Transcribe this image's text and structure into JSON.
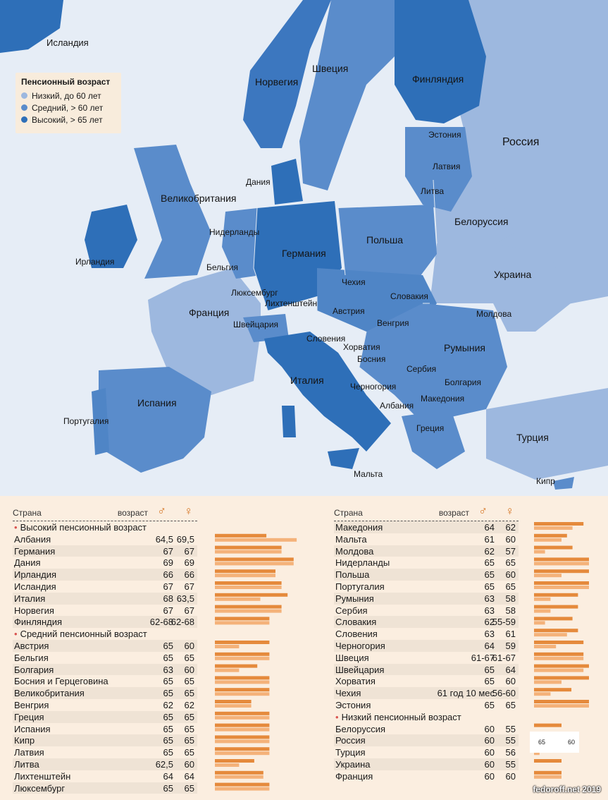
{
  "legend": {
    "title": "Пенсионный возраст",
    "items": [
      {
        "label": "Низкий, до 60 лет",
        "color": "#9db8df"
      },
      {
        "label": "Средний, > 60 лет",
        "color": "#5a8ccb"
      },
      {
        "label": "Высокий, > 65 лет",
        "color": "#2e6fb8"
      }
    ]
  },
  "map_labels": {
    "iceland": "Исландия",
    "norway": "Норвегия",
    "sweden": "Швеция",
    "finland": "Финляндия",
    "russia": "Россия",
    "estonia": "Эстония",
    "latvia": "Латвия",
    "lithuania": "Литва",
    "denmark": "Дания",
    "uk": "Великобритания",
    "ireland": "Ирландия",
    "netherlands": "Нидерланды",
    "germany": "Германия",
    "poland": "Польша",
    "belarus": "Белоруссия",
    "belgium": "Бельгия",
    "luxembourg": "Люксембург",
    "liechtenstein": "Лихтенштейн",
    "czechia": "Чехия",
    "slovakia": "Словакия",
    "ukraine": "Украина",
    "austria": "Австрия",
    "france": "Франция",
    "switzerland": "Швейцария",
    "hungary": "Венгрия",
    "moldova": "Молдова",
    "slovenia": "Словения",
    "romania": "Румыния",
    "croatia": "Хорватия",
    "bosnia": "Босния",
    "serbia": "Сербия",
    "italy": "Италия",
    "montenegro": "Черногория",
    "bulgaria": "Болгария",
    "spain": "Испания",
    "portugal": "Португалия",
    "albania": "Албания",
    "macedonia": "Македония",
    "greece": "Греция",
    "turkey": "Турция",
    "malta": "Мальта",
    "cyprus": "Кипр"
  },
  "table_header": {
    "country": "Страна",
    "age": "возраст",
    "male": "♂",
    "female": "♀"
  },
  "left_table": {
    "sections": [
      {
        "title": "Высокий пенсионный возраст",
        "rows": [
          {
            "country": "Албания",
            "m": "64,5",
            "f": "69,5",
            "mv": 64.5,
            "fv": 69.5
          },
          {
            "country": "Германия",
            "m": "67",
            "f": "67",
            "mv": 67,
            "fv": 67
          },
          {
            "country": "Дания",
            "m": "69",
            "f": "69",
            "mv": 69,
            "fv": 69
          },
          {
            "country": "Ирландия",
            "m": "66",
            "f": "66",
            "mv": 66,
            "fv": 66
          },
          {
            "country": "Исландия",
            "m": "67",
            "f": "67",
            "mv": 67,
            "fv": 67
          },
          {
            "country": "Италия",
            "m": "68",
            "f": "63,5",
            "mv": 68,
            "fv": 63.5
          },
          {
            "country": "Норвегия",
            "m": "67",
            "f": "67",
            "mv": 67,
            "fv": 67
          },
          {
            "country": "Финляндия",
            "m": "62-68",
            "f": "62-68",
            "mv": 65,
            "fv": 65
          }
        ]
      },
      {
        "title": "Средний пенсионный возраст",
        "rows": [
          {
            "country": "Австрия",
            "m": "65",
            "f": "60",
            "mv": 65,
            "fv": 60
          },
          {
            "country": "Бельгия",
            "m": "65",
            "f": "65",
            "mv": 65,
            "fv": 65
          },
          {
            "country": "Болгария",
            "m": "63",
            "f": "60",
            "mv": 63,
            "fv": 60
          },
          {
            "country": "Босния и Герцеговина",
            "m": "65",
            "f": "65",
            "mv": 65,
            "fv": 65
          },
          {
            "country": "Великобритания",
            "m": "65",
            "f": "65",
            "mv": 65,
            "fv": 65
          },
          {
            "country": "Венгрия",
            "m": "62",
            "f": "62",
            "mv": 62,
            "fv": 62
          },
          {
            "country": "Греция",
            "m": "65",
            "f": "65",
            "mv": 65,
            "fv": 65
          },
          {
            "country": "Испания",
            "m": "65",
            "f": "65",
            "mv": 65,
            "fv": 65
          },
          {
            "country": "Кипр",
            "m": "65",
            "f": "65",
            "mv": 65,
            "fv": 65
          },
          {
            "country": "Латвия",
            "m": "65",
            "f": "65",
            "mv": 65,
            "fv": 65
          },
          {
            "country": "Литва",
            "m": "62,5",
            "f": "60",
            "mv": 62.5,
            "fv": 60
          },
          {
            "country": "Лихтенштейн",
            "m": "64",
            "f": "64",
            "mv": 64,
            "fv": 64
          },
          {
            "country": "Люксембург",
            "m": "65",
            "f": "65",
            "mv": 65,
            "fv": 65
          }
        ]
      }
    ]
  },
  "right_table": {
    "sections": [
      {
        "title": "",
        "rows": [
          {
            "country": "Македония",
            "m": "64",
            "f": "62",
            "mv": 64,
            "fv": 62
          },
          {
            "country": "Мальта",
            "m": "61",
            "f": "60",
            "mv": 61,
            "fv": 60
          },
          {
            "country": "Молдова",
            "m": "62",
            "f": "57",
            "mv": 62,
            "fv": 57
          },
          {
            "country": "Нидерланды",
            "m": "65",
            "f": "65",
            "mv": 65,
            "fv": 65
          },
          {
            "country": "Польша",
            "m": "65",
            "f": "60",
            "mv": 65,
            "fv": 60
          },
          {
            "country": "Португалия",
            "m": "65",
            "f": "65",
            "mv": 65,
            "fv": 65
          },
          {
            "country": "Румыния",
            "m": "63",
            "f": "58",
            "mv": 63,
            "fv": 58
          },
          {
            "country": "Сербия",
            "m": "63",
            "f": "58",
            "mv": 63,
            "fv": 58
          },
          {
            "country": "Словакия",
            "m": "62",
            "f": "55-59",
            "mv": 62,
            "fv": 57
          },
          {
            "country": "Словения",
            "m": "63",
            "f": "61",
            "mv": 63,
            "fv": 61
          },
          {
            "country": "Черногория",
            "m": "64",
            "f": "59",
            "mv": 64,
            "fv": 59
          },
          {
            "country": "Швеция",
            "m": "61-67",
            "f": "61-67",
            "mv": 64,
            "fv": 64
          },
          {
            "country": "Швейцария",
            "m": "65",
            "f": "64",
            "mv": 65,
            "fv": 64
          },
          {
            "country": "Хорватия",
            "m": "65",
            "f": "60",
            "mv": 65,
            "fv": 60
          },
          {
            "country": "Чехия",
            "m": "61 год 10 мес",
            "f": "56-60",
            "mv": 61.8,
            "fv": 58
          },
          {
            "country": "Эстония",
            "m": "65",
            "f": "65",
            "mv": 65,
            "fv": 65
          }
        ]
      },
      {
        "title": "Низкий пенсионный возраст",
        "rows": [
          {
            "country": "Белоруссия",
            "m": "60",
            "f": "55",
            "mv": 60,
            "fv": 55
          },
          {
            "country": "Россия",
            "m": "60",
            "f": "55",
            "mv": 60,
            "fv": 55
          },
          {
            "country": "Турция",
            "m": "60",
            "f": "56",
            "mv": 60,
            "fv": 56
          },
          {
            "country": "Украина",
            "m": "60",
            "f": "55",
            "mv": 60,
            "fv": 55
          },
          {
            "country": "Франция",
            "m": "60",
            "f": "60",
            "mv": 60,
            "fv": 60
          }
        ]
      }
    ]
  },
  "scale": {
    "a": "65",
    "b": "60"
  },
  "footer": "fedoroff.net 2019"
}
